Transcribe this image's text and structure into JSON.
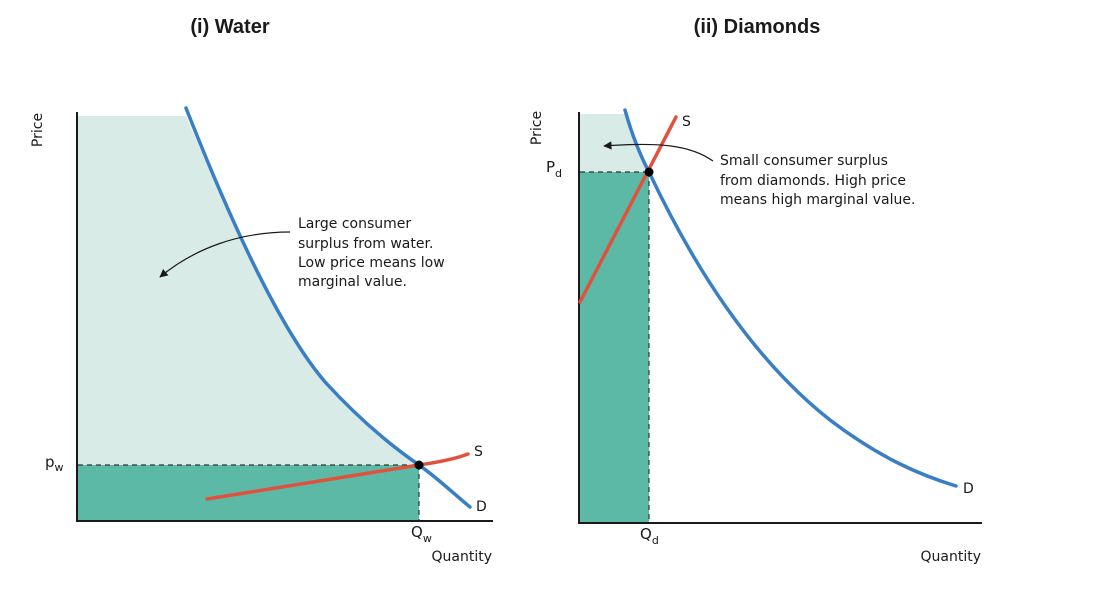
{
  "panels": [
    {
      "title": "(i) Water",
      "axis_y": "Price",
      "axis_x": "Quantity",
      "price_mark": "p",
      "price_mark_sub": "w",
      "quantity_mark": "Q",
      "quantity_mark_sub": "w",
      "supply_label": "S",
      "demand_label": "D",
      "annotation_lines": [
        "Large consumer",
        "surplus from water.",
        "Low price means low",
        "marginal value."
      ]
    },
    {
      "title": "(ii) Diamonds",
      "axis_y": "Price",
      "axis_x": "Quantity",
      "price_mark": "P",
      "price_mark_sub": "d",
      "quantity_mark": "Q",
      "quantity_mark_sub": "d",
      "supply_label": "S",
      "demand_label": "D",
      "annotation_lines": [
        "Small consumer surplus",
        "from diamonds. High price",
        "means high marginal value."
      ]
    }
  ],
  "colors": {
    "demand": "#3a7fc4",
    "supply": "#e0523e",
    "consumer_surplus": "#d8ebe7",
    "expenditure": "#5cb9a6"
  }
}
